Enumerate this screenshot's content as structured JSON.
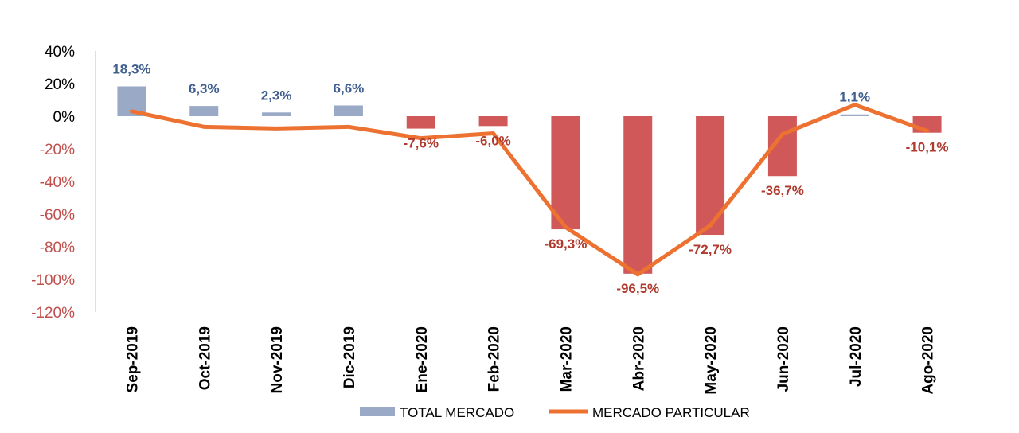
{
  "chart_data": {
    "type": "bar",
    "categories": [
      "Sep-2019",
      "Oct-2019",
      "Nov-2019",
      "Dic-2019",
      "Ene-2020",
      "Feb-2020",
      "Mar-2020",
      "Abr-2020",
      "May-2020",
      "Jun-2020",
      "Jul-2020",
      "Ago-2020"
    ],
    "y_ticks": [
      "40%",
      "20%",
      "0%",
      "-20%",
      "-40%",
      "-60%",
      "-80%",
      "-100%",
      "-120%"
    ],
    "y_tick_values": [
      40,
      20,
      0,
      -20,
      -40,
      -60,
      -80,
      -100,
      -120
    ],
    "ylim": [
      -120,
      40
    ],
    "grid": false,
    "legend_position": "bottom",
    "series": [
      {
        "name": "TOTAL MERCADO",
        "type": "bar",
        "values": [
          18.3,
          6.3,
          2.3,
          6.6,
          -7.6,
          -6.0,
          -69.3,
          -96.5,
          -72.7,
          -36.7,
          1.1,
          -10.1
        ],
        "labels": [
          "18,3%",
          "6,3%",
          "2,3%",
          "6,6%",
          "-7,6%",
          "-6,0%",
          "-69,3%",
          "-96,5%",
          "-72,7%",
          "-36,7%",
          "1,1%",
          "-10,1%"
        ]
      },
      {
        "name": "MERCADO PARTICULAR",
        "type": "line",
        "values": [
          3,
          -6.5,
          -7.5,
          -6.5,
          -13.5,
          -10.5,
          -68,
          -97,
          -67,
          -11,
          7,
          -9
        ]
      }
    ],
    "colors": {
      "positive_bar": "#9aaac6",
      "negative_bar": "#d05858",
      "line": "#ed7232",
      "positive_tick": "#000000",
      "negative_tick": "#c0504d",
      "positive_label": "#3f5f8f",
      "negative_label": "#b03a2e"
    }
  }
}
